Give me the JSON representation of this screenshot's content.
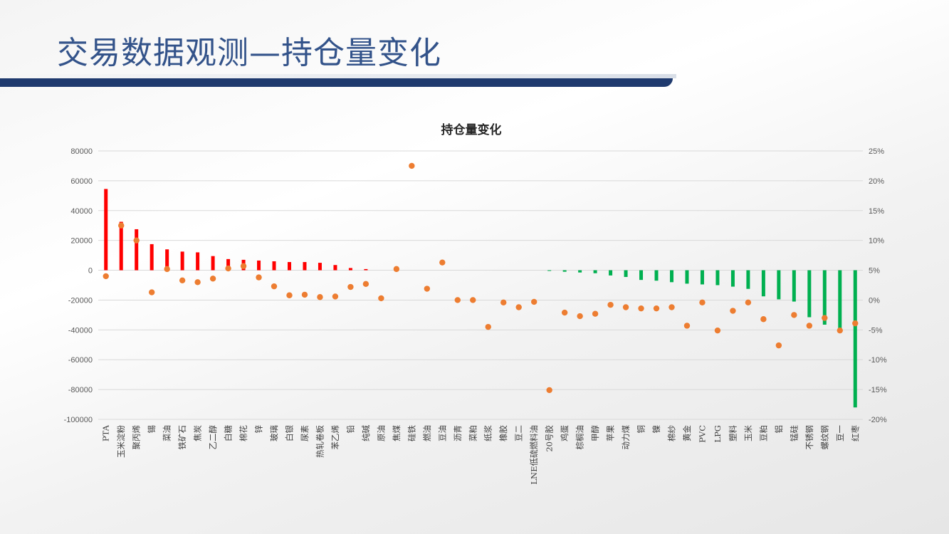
{
  "slide": {
    "title": "交易数据观测—持仓量变化"
  },
  "chart_data": {
    "type": "bar",
    "title": "持仓量变化",
    "legend": "none",
    "grid": true,
    "colors": {
      "positive_bar": "#ff0000",
      "negative_bar": "#00b050",
      "marker": "#ed7d31"
    },
    "y_left": {
      "min": -100000,
      "max": 80000,
      "step": 20000,
      "ticks": [
        "80000",
        "60000",
        "40000",
        "20000",
        "0",
        "-20000",
        "-40000",
        "-60000",
        "-80000",
        "-100000"
      ]
    },
    "y_right": {
      "min": -20,
      "max": 25,
      "step": 5,
      "unit": "%",
      "ticks": [
        "25%",
        "20%",
        "15%",
        "10%",
        "5%",
        "0%",
        "-5%",
        "-10%",
        "-15%",
        "-20%"
      ]
    },
    "categories": [
      "PTA",
      "玉米淀粉",
      "聚丙烯",
      "锡",
      "菜油",
      "铁矿石",
      "焦炭",
      "乙二醇",
      "白糖",
      "棉花",
      "锌",
      "玻璃",
      "白银",
      "尿素",
      "热轧卷板",
      "苯乙烯",
      "铅",
      "纯碱",
      "原油",
      "焦煤",
      "硅铁",
      "燃油",
      "豆油",
      "沥青",
      "菜粕",
      "纸浆",
      "橡胶",
      "豆二",
      "LNE低硫燃料油",
      "20号胶",
      "鸡蛋",
      "棕榈油",
      "甲醇",
      "苹果",
      "动力煤",
      "铜",
      "镍",
      "棉纱",
      "黄金",
      "PVC",
      "LPG",
      "塑料",
      "玉米",
      "豆粕",
      "铝",
      "锰硅",
      "不锈钢",
      "螺纹钢",
      "豆一",
      "红枣"
    ],
    "series": [
      {
        "type": "bar",
        "axis": "left",
        "values": [
          54500,
          32500,
          27500,
          17500,
          14000,
          12500,
          12000,
          9500,
          7500,
          7000,
          6500,
          6000,
          5500,
          5500,
          5000,
          3500,
          1500,
          800,
          0,
          0,
          0,
          0,
          0,
          0,
          0,
          0,
          0,
          0,
          0,
          -300,
          -1000,
          -1500,
          -2000,
          -3500,
          -4500,
          -6500,
          -7000,
          -8000,
          -9000,
          -9500,
          -10000,
          -11000,
          -12500,
          -17500,
          -19500,
          -21000,
          -31500,
          -36500,
          -39000,
          -92000
        ]
      },
      {
        "type": "scatter",
        "axis": "right",
        "values": [
          4,
          12.5,
          10,
          1.3,
          5.2,
          3.3,
          3,
          3.6,
          5.3,
          5.7,
          3.8,
          2.3,
          0.8,
          0.9,
          0.5,
          0.6,
          2.2,
          2.7,
          0.3,
          5.2,
          22.5,
          1.9,
          6.3,
          0,
          0,
          -4.5,
          -0.4,
          -1.2,
          -0.3,
          -15.1,
          -2.1,
          -2.7,
          -2.3,
          -0.8,
          -1.2,
          -1.4,
          -1.4,
          -1.2,
          -4.3,
          -0.4,
          -5.1,
          -1.8,
          -0.4,
          -3.2,
          -7.6,
          -2.5,
          -4.3,
          -3,
          -5.1,
          -3.9
        ]
      }
    ]
  }
}
